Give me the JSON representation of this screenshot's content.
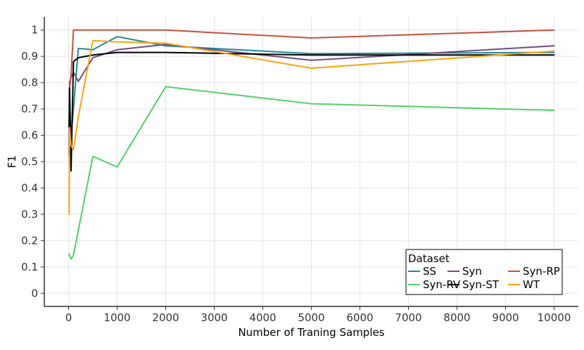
{
  "chart_data": {
    "type": "line",
    "title": "",
    "xlabel": "Number of Traning Samples",
    "ylabel": "F1",
    "xlim": [
      -500,
      10500
    ],
    "ylim": [
      -0.05,
      1.05
    ],
    "x_ticks": [
      0,
      1000,
      2000,
      3000,
      4000,
      5000,
      6000,
      7000,
      8000,
      9000,
      10000
    ],
    "x_tick_labels": [
      "0",
      "1000",
      "2000",
      "3000",
      "4000",
      "5000",
      "6000",
      "7000",
      "8000",
      "9000",
      "10000"
    ],
    "y_ticks": [
      0,
      0.1,
      0.2,
      0.3,
      0.4,
      0.5,
      0.6,
      0.7,
      0.8,
      0.9,
      1.0
    ],
    "y_tick_labels": [
      "0",
      "0.1",
      "0.2",
      "0.3",
      "0.4",
      "0.5",
      "0.6",
      "0.7",
      "0.8",
      "0.9",
      "1"
    ],
    "grid": true,
    "legend": {
      "title": "Dataset",
      "placement": "bottom-right"
    },
    "series": [
      {
        "name": "SS",
        "color": "#1f8a99",
        "x": [
          10,
          20,
          50,
          100,
          200,
          500,
          1000,
          2000,
          5000,
          10000
        ],
        "y": [
          0.64,
          0.74,
          0.6,
          0.7,
          0.93,
          0.925,
          0.975,
          0.94,
          0.91,
          0.915
        ]
      },
      {
        "name": "Syn",
        "color": "#6e4c7e",
        "x": [
          10,
          20,
          50,
          100,
          200,
          500,
          1000,
          2000,
          5000,
          10000
        ],
        "y": [
          0.52,
          0.8,
          0.82,
          0.84,
          0.805,
          0.895,
          0.925,
          0.945,
          0.885,
          0.94
        ]
      },
      {
        "name": "Syn-RP",
        "color": "#c5513a",
        "x": [
          10,
          20,
          50,
          100,
          200,
          500,
          1000,
          2000,
          5000,
          10000
        ],
        "y": [
          0.62,
          0.78,
          0.83,
          1.0,
          1.0,
          1.0,
          1.0,
          1.0,
          0.97,
          1.0
        ]
      },
      {
        "name": "Syn-RV",
        "color": "#4fd06b",
        "x": [
          10,
          50,
          100,
          500,
          1000,
          2000,
          5000,
          10000
        ],
        "y": [
          0.15,
          0.13,
          0.145,
          0.52,
          0.48,
          0.785,
          0.72,
          0.695
        ]
      },
      {
        "name": "Syn-ST",
        "color": "#000000",
        "x": [
          10,
          20,
          50,
          100,
          200,
          500,
          1000,
          2000,
          5000,
          10000
        ],
        "y": [
          0.63,
          0.78,
          0.465,
          0.88,
          0.895,
          0.905,
          0.915,
          0.915,
          0.905,
          0.905
        ]
      },
      {
        "name": "WT",
        "color": "#f5a50a",
        "x": [
          10,
          20,
          50,
          100,
          200,
          500,
          1000,
          2000,
          5000,
          10000
        ],
        "y": [
          0.3,
          0.63,
          0.56,
          0.545,
          0.67,
          0.96,
          0.955,
          0.95,
          0.855,
          0.92
        ]
      }
    ]
  }
}
